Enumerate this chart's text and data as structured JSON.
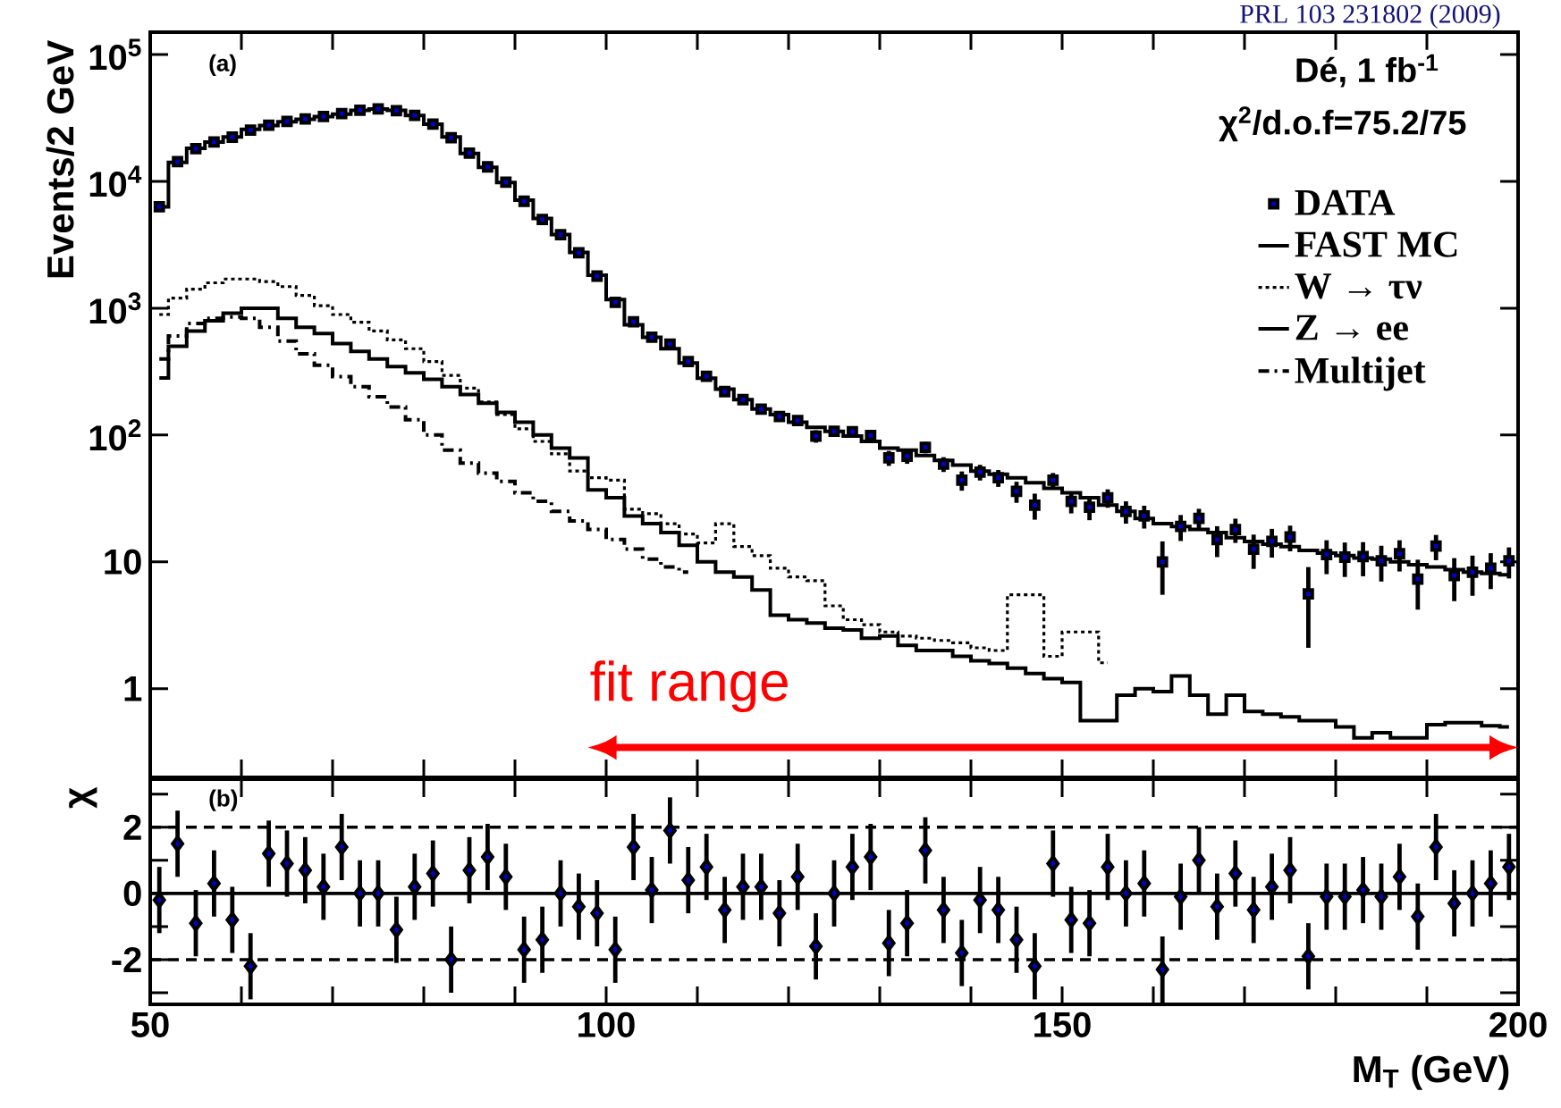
{
  "chart_data": [
    {
      "type": "step",
      "ylabel": "Events/2 GeV",
      "log": "y",
      "legend": "top right",
      "tick_labels": "y",
      "xlim": [
        50,
        200
      ],
      "xticks": [
        50,
        60,
        70,
        80,
        90,
        100,
        110,
        120,
        130,
        140,
        150,
        160,
        170,
        180,
        190,
        200
      ],
      "ylim": [
        0.2,
        150000
      ],
      "yticks": [
        {
          "value": 1,
          "label": "1"
        },
        {
          "value": 10,
          "label": "10"
        },
        {
          "value": 100,
          "label": "10$^{2}$"
        },
        {
          "value": 1000,
          "label": "10$^{3}$"
        },
        {
          "value": 10000,
          "label": "10$^{4}$"
        },
        {
          "value": 100000,
          "label": "10$^{5}$"
        }
      ],
      "annotations": [
        "(a)",
        "Dé, 1 fb$^{-1}$",
        "χ$^{2}$/d.o.f=75.2/75",
        "PRL 103 231802 (2009)",
        "fit range"
      ],
      "x": [
        51,
        53,
        55,
        57,
        59,
        61,
        63,
        65,
        67,
        69,
        71,
        73,
        75,
        77,
        79,
        81,
        83,
        85,
        87,
        89,
        91,
        93,
        95,
        97,
        99,
        101,
        103,
        105,
        107,
        109,
        111,
        113,
        115,
        117,
        119,
        121,
        123,
        125,
        127,
        129,
        131,
        133,
        135,
        137,
        139,
        141,
        143,
        145,
        147,
        149,
        151,
        153,
        155,
        157,
        159,
        161,
        163,
        165,
        167,
        169,
        171,
        173,
        175,
        177,
        179,
        181,
        183,
        185,
        187,
        189,
        191,
        193,
        195,
        197,
        199
      ],
      "series": [
        {
          "name": "DATA",
          "type": "scatter",
          "marker": "square",
          "color": "#000000",
          "values": [
            6300,
            14300,
            18100,
            20400,
            22300,
            25300,
            27700,
            29700,
            31000,
            32400,
            34200,
            36300,
            37200,
            36100,
            33100,
            28300,
            22100,
            16700,
            13000,
            9850,
            6960,
            5000,
            3800,
            2730,
            1790,
            1110,
            780,
            590,
            520,
            380,
            290,
            220,
            190,
            160,
            140,
            130,
            98,
            107,
            106,
            99,
            66,
            68,
            80,
            59,
            44,
            51,
            46,
            36,
            28,
            44,
            30,
            27,
            32,
            25,
            23,
            10,
            19,
            22,
            15,
            18,
            12.6,
            14.5,
            15.7,
            5.6,
            11.4,
            10.9,
            11,
            10.2,
            11.6,
            7.3,
            13.3,
            7.8,
            8.3,
            8.9,
            10.2
          ],
          "errors": [
            null,
            null,
            null,
            null,
            null,
            null,
            null,
            null,
            null,
            null,
            null,
            null,
            null,
            null,
            null,
            null,
            null,
            null,
            null,
            null,
            null,
            null,
            null,
            null,
            null,
            34,
            27,
            24,
            22,
            19,
            17,
            15,
            14,
            13,
            12,
            11,
            11,
            10,
            10,
            9.4,
            8.9,
            8.7,
            8.3,
            7.9,
            7.6,
            7.2,
            7,
            6.8,
            6.5,
            6.2,
            5.9,
            5.7,
            5.3,
            5,
            4.7,
            4.5,
            4.4,
            4.2,
            4.1,
            3.9,
            3.8,
            3.7,
            3.6,
            3.5,
            3.4,
            3.3,
            3.3,
            3.2,
            3.2,
            3.1,
            3,
            2.9,
            2.9,
            2.8,
            2.8
          ]
        },
        {
          "name": "FAST MC",
          "type": "step",
          "line_style": "solid",
          "color": "#000000",
          "values": [
            6300,
            14100,
            18200,
            20400,
            22400,
            25700,
            27500,
            29500,
            30900,
            32400,
            33900,
            36300,
            37200,
            36300,
            33100,
            28200,
            22400,
            16600,
            12900,
            9800,
            7100,
            5100,
            3800,
            2750,
            1820,
            1170,
            740,
            590,
            480,
            370,
            280,
            230,
            190,
            160,
            145,
            126,
            115,
            107,
            98,
            89,
            79,
            76,
            69,
            63,
            58,
            52,
            49,
            46,
            42,
            38,
            35,
            32,
            28,
            25,
            22,
            20,
            19,
            18,
            17,
            15.5,
            14.5,
            13.8,
            13.2,
            12.3,
            11.7,
            11.2,
            10.7,
            10.5,
            10,
            9.5,
            9.1,
            8.7,
            8.3,
            8.1,
            7.9
          ]
        },
        {
          "name": "W → τν",
          "type": "step",
          "line_style": "dotted",
          "color": "#000000",
          "values": [
            891,
            1202,
            1413,
            1585,
            1698,
            1698,
            1622,
            1479,
            1259,
            1047,
            891,
            776,
            661,
            562,
            479,
            380,
            295,
            234,
            182,
            145,
            112,
            89,
            71,
            52,
            46,
            44,
            26,
            24,
            20,
            16.6,
            14.1,
            20,
            13.2,
            11.2,
            8.9,
            7.6,
            7.1,
            4.5,
            3.5,
            3.2,
            2.8,
            2.6,
            2.5,
            2.4,
            2.3,
            2.1,
            2.0,
            5.5,
            5.5,
            1.8,
            2.8,
            2.8,
            1.6,
            null,
            null,
            null,
            null,
            null,
            null,
            null,
            null,
            null,
            null,
            null,
            null,
            null,
            null,
            null,
            null,
            null,
            null,
            null,
            null,
            null,
            null
          ]
        },
        {
          "name": "Z → ee",
          "type": "step",
          "line_style": "solid",
          "color": "#000000",
          "values": [
            282,
            501,
            661,
            794,
            912,
            1000,
            1000,
            832,
            708,
            631,
            525,
            457,
            398,
            347,
            309,
            275,
            240,
            209,
            178,
            151,
            126,
            100,
            79,
            66,
            37,
            32,
            23,
            20,
            17,
            13.5,
            10,
            8.3,
            7.6,
            6.0,
            3.8,
            3.5,
            3.3,
            3.0,
            2.9,
            2.5,
            2.6,
            2.2,
            2.0,
            2.0,
            1.8,
            1.66,
            1.58,
            1.45,
            1.32,
            1.2,
            1.12,
            0.56,
            0.56,
            0.89,
            1.0,
            0.95,
            1.26,
            0.89,
            0.63,
            0.89,
            0.66,
            0.63,
            0.6,
            0.56,
            0.56,
            0.5,
            0.41,
            0.45,
            0.41,
            0.41,
            0.52,
            0.54,
            0.54,
            0.51,
            0.5
          ]
        },
        {
          "name": "Multijet",
          "type": "step",
          "line_style": "dashed",
          "color": "#000000",
          "values": [
            398,
            603,
            759,
            832,
            851,
            832,
            708,
            550,
            437,
            355,
            288,
            240,
            200,
            166,
            132,
            100,
            76,
            60,
            50,
            43,
            35,
            30,
            25,
            21,
            18,
            15,
            12.6,
            10.5,
            9.1,
            8.3,
            null,
            null,
            null,
            null,
            null,
            null,
            null,
            null,
            null,
            null,
            null,
            null,
            null,
            null,
            null,
            null,
            null,
            null,
            null,
            null,
            null,
            null,
            null,
            null,
            null,
            null,
            null,
            null,
            null,
            null,
            null,
            null,
            null,
            null,
            null,
            null,
            null,
            null,
            null,
            null,
            null,
            null,
            null,
            null,
            null
          ]
        }
      ]
    },
    {
      "type": "scatter",
      "xlabel": "M$_{T}$ (GeV)",
      "ylabel": "χ",
      "marker": "diamond",
      "xlim": [
        50,
        200
      ],
      "xticks": [
        50,
        {
          "value": 60,
          "label": null
        },
        {
          "value": 70,
          "label": null
        },
        {
          "value": 80,
          "label": null
        },
        {
          "value": 90,
          "label": null
        },
        100,
        {
          "value": 110,
          "label": null
        },
        {
          "value": 120,
          "label": null
        },
        {
          "value": 130,
          "label": null
        },
        {
          "value": 140,
          "label": null
        },
        150,
        {
          "value": 160,
          "label": null
        },
        {
          "value": 170,
          "label": null
        },
        {
          "value": 180,
          "label": null
        },
        {
          "value": 190,
          "label": null
        },
        200
      ],
      "ylim": [
        -3.35,
        3.45
      ],
      "yticks": [
        {
          "value": -3,
          "label": null
        },
        -2,
        {
          "value": -1,
          "label": null
        },
        0,
        {
          "value": 1,
          "label": null
        },
        2,
        {
          "value": 3,
          "label": null
        }
      ],
      "annotations": [
        "(b)"
      ],
      "ref_lines": [
        {
          "axis": "y",
          "value": 0,
          "line_style": "solid"
        },
        {
          "axis": "y",
          "value": 2,
          "line_style": "dashed"
        },
        {
          "axis": "y",
          "value": -2,
          "line_style": "dashed"
        }
      ],
      "x": [
        51,
        53,
        55,
        57,
        59,
        61,
        63,
        65,
        67,
        69,
        71,
        73,
        75,
        77,
        79,
        81,
        83,
        85,
        87,
        89,
        91,
        93,
        95,
        97,
        99,
        101,
        103,
        105,
        107,
        109,
        111,
        113,
        115,
        117,
        119,
        121,
        123,
        125,
        127,
        129,
        131,
        133,
        135,
        137,
        139,
        141,
        143,
        145,
        147,
        149,
        151,
        153,
        155,
        157,
        159,
        161,
        163,
        165,
        167,
        169,
        171,
        173,
        175,
        177,
        179,
        181,
        183,
        185,
        187,
        189,
        191,
        193,
        195,
        197,
        199
      ],
      "values": [
        -0.2,
        1.5,
        -0.9,
        0.3,
        -0.8,
        -2.2,
        1.2,
        0.9,
        0.7,
        0.2,
        1.4,
        0,
        0,
        -1.1,
        0.2,
        0.6,
        -2.0,
        0.7,
        1.1,
        0.5,
        -1.7,
        -1.4,
        0,
        -0.4,
        -0.6,
        -1.7,
        1.4,
        0.1,
        1.9,
        0.4,
        0.8,
        -0.5,
        0.2,
        0.2,
        -0.6,
        0.5,
        -1.6,
        0,
        0.8,
        1.1,
        -1.5,
        -0.9,
        1.3,
        -0.5,
        -1.8,
        -0.2,
        -0.5,
        -1.4,
        -2.2,
        0.9,
        -0.8,
        -0.9,
        0.8,
        0,
        0.3,
        -2.3,
        -0.1,
        1.0,
        -0.4,
        0.6,
        -0.5,
        0.2,
        0.7,
        -1.9,
        -0.1,
        -0.1,
        0.1,
        -0.1,
        0.5,
        -0.7,
        1.4,
        -0.3,
        0,
        0.3,
        0.8
      ],
      "errors": [
        1,
        1,
        1,
        1,
        1,
        1,
        1,
        1,
        1,
        1,
        1,
        1,
        1,
        1,
        1,
        1,
        1,
        1,
        1,
        1,
        1,
        1,
        1,
        1,
        1,
        1,
        1,
        1,
        1,
        1,
        1,
        1,
        1,
        1,
        1,
        1,
        1,
        1,
        1,
        1,
        1,
        1,
        1,
        1,
        1,
        1,
        1,
        1,
        1,
        1,
        1,
        1,
        1,
        1,
        1,
        1,
        1,
        1,
        1,
        1,
        1,
        1,
        1,
        1,
        1,
        1,
        1,
        1,
        1,
        1,
        1,
        1,
        1,
        1,
        1
      ],
      "color": "#000000"
    }
  ]
}
